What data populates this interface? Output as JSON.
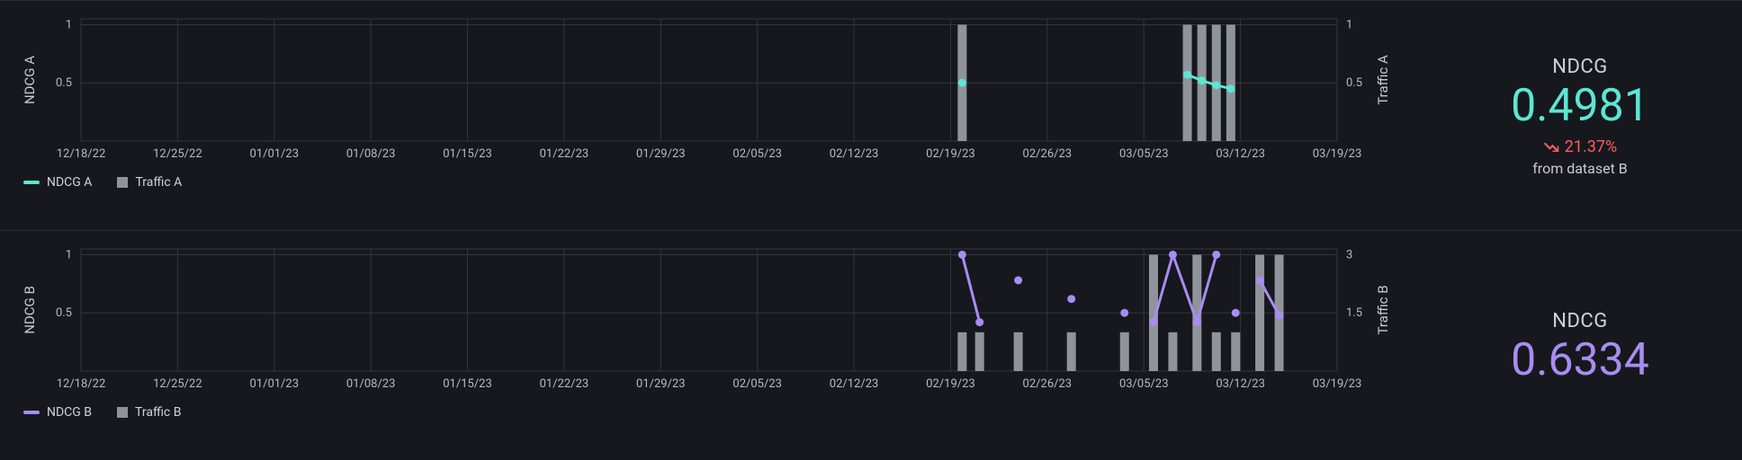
{
  "background_color": "#16181d",
  "grid_color": "#33363c",
  "text_color": "#c9ccd1",
  "bar_color": "#8f949b",
  "x_ticks": [
    "12/18/22",
    "12/25/22",
    "01/01/23",
    "01/08/23",
    "01/15/23",
    "01/22/23",
    "01/29/23",
    "02/05/23",
    "02/12/23",
    "02/19/23",
    "02/26/23",
    "03/05/23",
    "03/12/23",
    "03/19/23"
  ],
  "panels": [
    {
      "id": "A",
      "left_axis_label": "NDCG A",
      "right_axis_label": "Traffic A",
      "left_ticks": [
        0.5,
        1
      ],
      "right_ticks": [
        0.5,
        1
      ],
      "left_range": [
        0,
        1.05
      ],
      "right_range": [
        0,
        1.05
      ],
      "series_color": "#5ce6d4",
      "legend_line": "NDCG A",
      "legend_bar": "Traffic A",
      "bars": [
        {
          "x": 9.12,
          "v": 1.0
        },
        {
          "x": 11.45,
          "v": 1.0
        },
        {
          "x": 11.6,
          "v": 1.0
        },
        {
          "x": 11.75,
          "v": 1.0
        },
        {
          "x": 11.9,
          "v": 1.0
        }
      ],
      "line": [
        {
          "x": 9.12,
          "y": 0.5
        },
        {
          "x": 11.45,
          "y": 0.57
        },
        {
          "x": 11.6,
          "y": 0.52
        },
        {
          "x": 11.75,
          "y": 0.48
        },
        {
          "x": 11.9,
          "y": 0.45
        }
      ],
      "line_segments": [
        [
          0,
          0
        ],
        [
          1,
          4
        ]
      ],
      "metric": {
        "title": "NDCG",
        "value": "0.4981",
        "value_color": "#5ce6d4",
        "delta_text": "21.37%",
        "delta_color": "#ff5b5b",
        "delta_dir": "down",
        "sub": "from dataset B"
      }
    },
    {
      "id": "B",
      "left_axis_label": "NDCG B",
      "right_axis_label": "Traffic B",
      "left_ticks": [
        0.5,
        1
      ],
      "right_ticks": [
        1.5,
        3
      ],
      "left_range": [
        0,
        1.05
      ],
      "right_range": [
        0,
        3.15
      ],
      "series_color": "#a98cf0",
      "legend_line": "NDCG B",
      "legend_bar": "Traffic B",
      "bars": [
        {
          "x": 9.12,
          "v": 1.0
        },
        {
          "x": 9.3,
          "v": 1.0
        },
        {
          "x": 9.7,
          "v": 1.0
        },
        {
          "x": 10.25,
          "v": 1.0
        },
        {
          "x": 10.8,
          "v": 1.0
        },
        {
          "x": 11.1,
          "v": 3.0
        },
        {
          "x": 11.3,
          "v": 1.0
        },
        {
          "x": 11.55,
          "v": 3.0
        },
        {
          "x": 11.75,
          "v": 1.0
        },
        {
          "x": 11.95,
          "v": 1.0
        },
        {
          "x": 12.2,
          "v": 3.0
        },
        {
          "x": 12.4,
          "v": 3.0
        }
      ],
      "line": [
        {
          "x": 9.12,
          "y": 1.0
        },
        {
          "x": 9.3,
          "y": 0.42
        },
        {
          "x": 9.7,
          "y": 0.78
        },
        {
          "x": 10.25,
          "y": 0.62
        },
        {
          "x": 10.8,
          "y": 0.5
        },
        {
          "x": 11.1,
          "y": 0.42
        },
        {
          "x": 11.3,
          "y": 1.0
        },
        {
          "x": 11.55,
          "y": 0.42
        },
        {
          "x": 11.75,
          "y": 1.0
        },
        {
          "x": 11.95,
          "y": 0.5
        },
        {
          "x": 12.2,
          "y": 0.78
        },
        {
          "x": 12.4,
          "y": 0.48
        }
      ],
      "line_segments": [
        [
          0,
          1
        ],
        [
          2,
          2
        ],
        [
          3,
          3
        ],
        [
          4,
          4
        ],
        [
          5,
          8
        ],
        [
          9,
          9
        ],
        [
          10,
          11
        ]
      ],
      "metric": {
        "title": "NDCG",
        "value": "0.6334",
        "value_color": "#a98cf0"
      }
    }
  ]
}
